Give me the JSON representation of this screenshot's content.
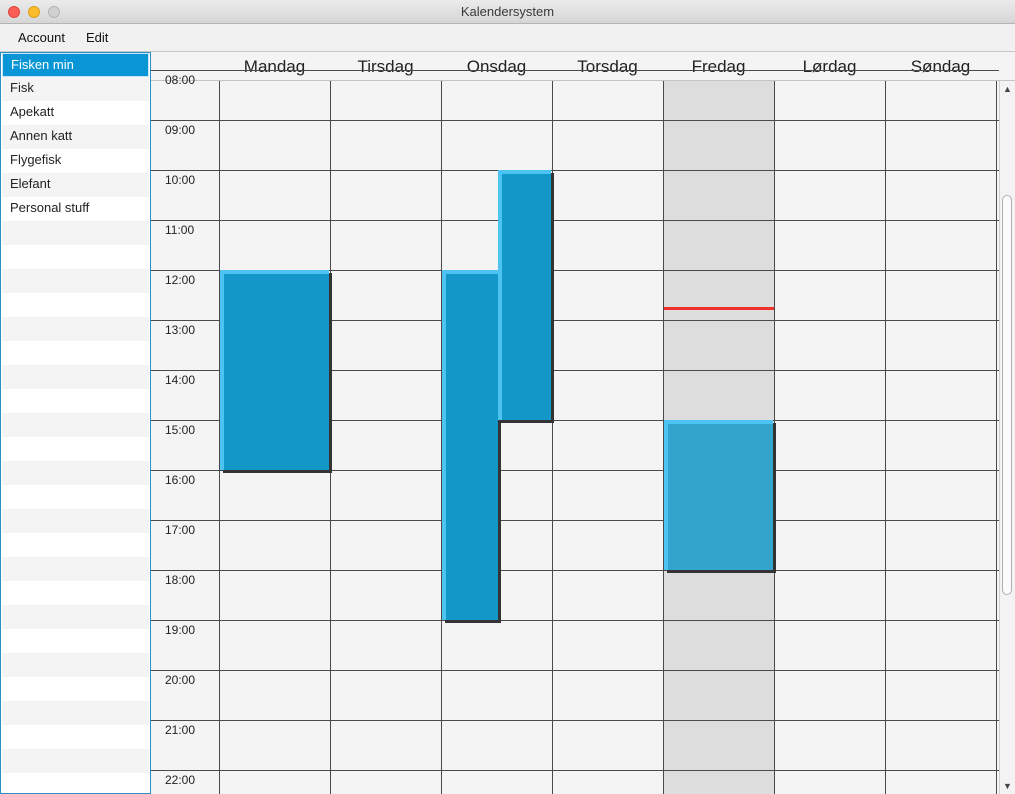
{
  "window": {
    "title": "Kalendersystem"
  },
  "menu": {
    "items": [
      "Account",
      "Edit"
    ]
  },
  "calendars": [
    {
      "label": "Fisken min",
      "selected": true
    },
    {
      "label": "Fisk",
      "selected": false
    },
    {
      "label": "Apekatt",
      "selected": false
    },
    {
      "label": "Annen katt",
      "selected": false
    },
    {
      "label": "Flygefisk",
      "selected": false
    },
    {
      "label": "Elefant",
      "selected": false
    },
    {
      "label": "Personal stuff",
      "selected": false
    }
  ],
  "week": {
    "days": [
      "Mandag",
      "Tirsdag",
      "Onsdag",
      "Torsdag",
      "Fredag",
      "Lørdag",
      "Søndag"
    ],
    "today_index": 4,
    "hours": [
      "08:00",
      "09:00",
      "10:00",
      "11:00",
      "12:00",
      "13:00",
      "14:00",
      "15:00",
      "16:00",
      "17:00",
      "18:00",
      "19:00",
      "20:00",
      "21:00",
      "22:00"
    ],
    "now_hour": 12.75
  },
  "events": [
    {
      "day": 0,
      "start": 12,
      "end": 16,
      "style": "normal"
    },
    {
      "day": 2,
      "start": 12,
      "end": 19,
      "style": "normal"
    },
    {
      "day": 2,
      "start": 10,
      "end": 15,
      "style": "normal",
      "overlap": true
    },
    {
      "day": 4,
      "start": 15,
      "end": 18,
      "style": "light"
    }
  ],
  "colors": {
    "selection": "#0a96d6",
    "event_fill": "#1397c8",
    "event_border": "#4cc3f2",
    "event_light_fill": "#33a5cc",
    "today_column": "#dddddd",
    "now_line": "#f0302a"
  },
  "scrollbar": {
    "position": 0.35
  }
}
